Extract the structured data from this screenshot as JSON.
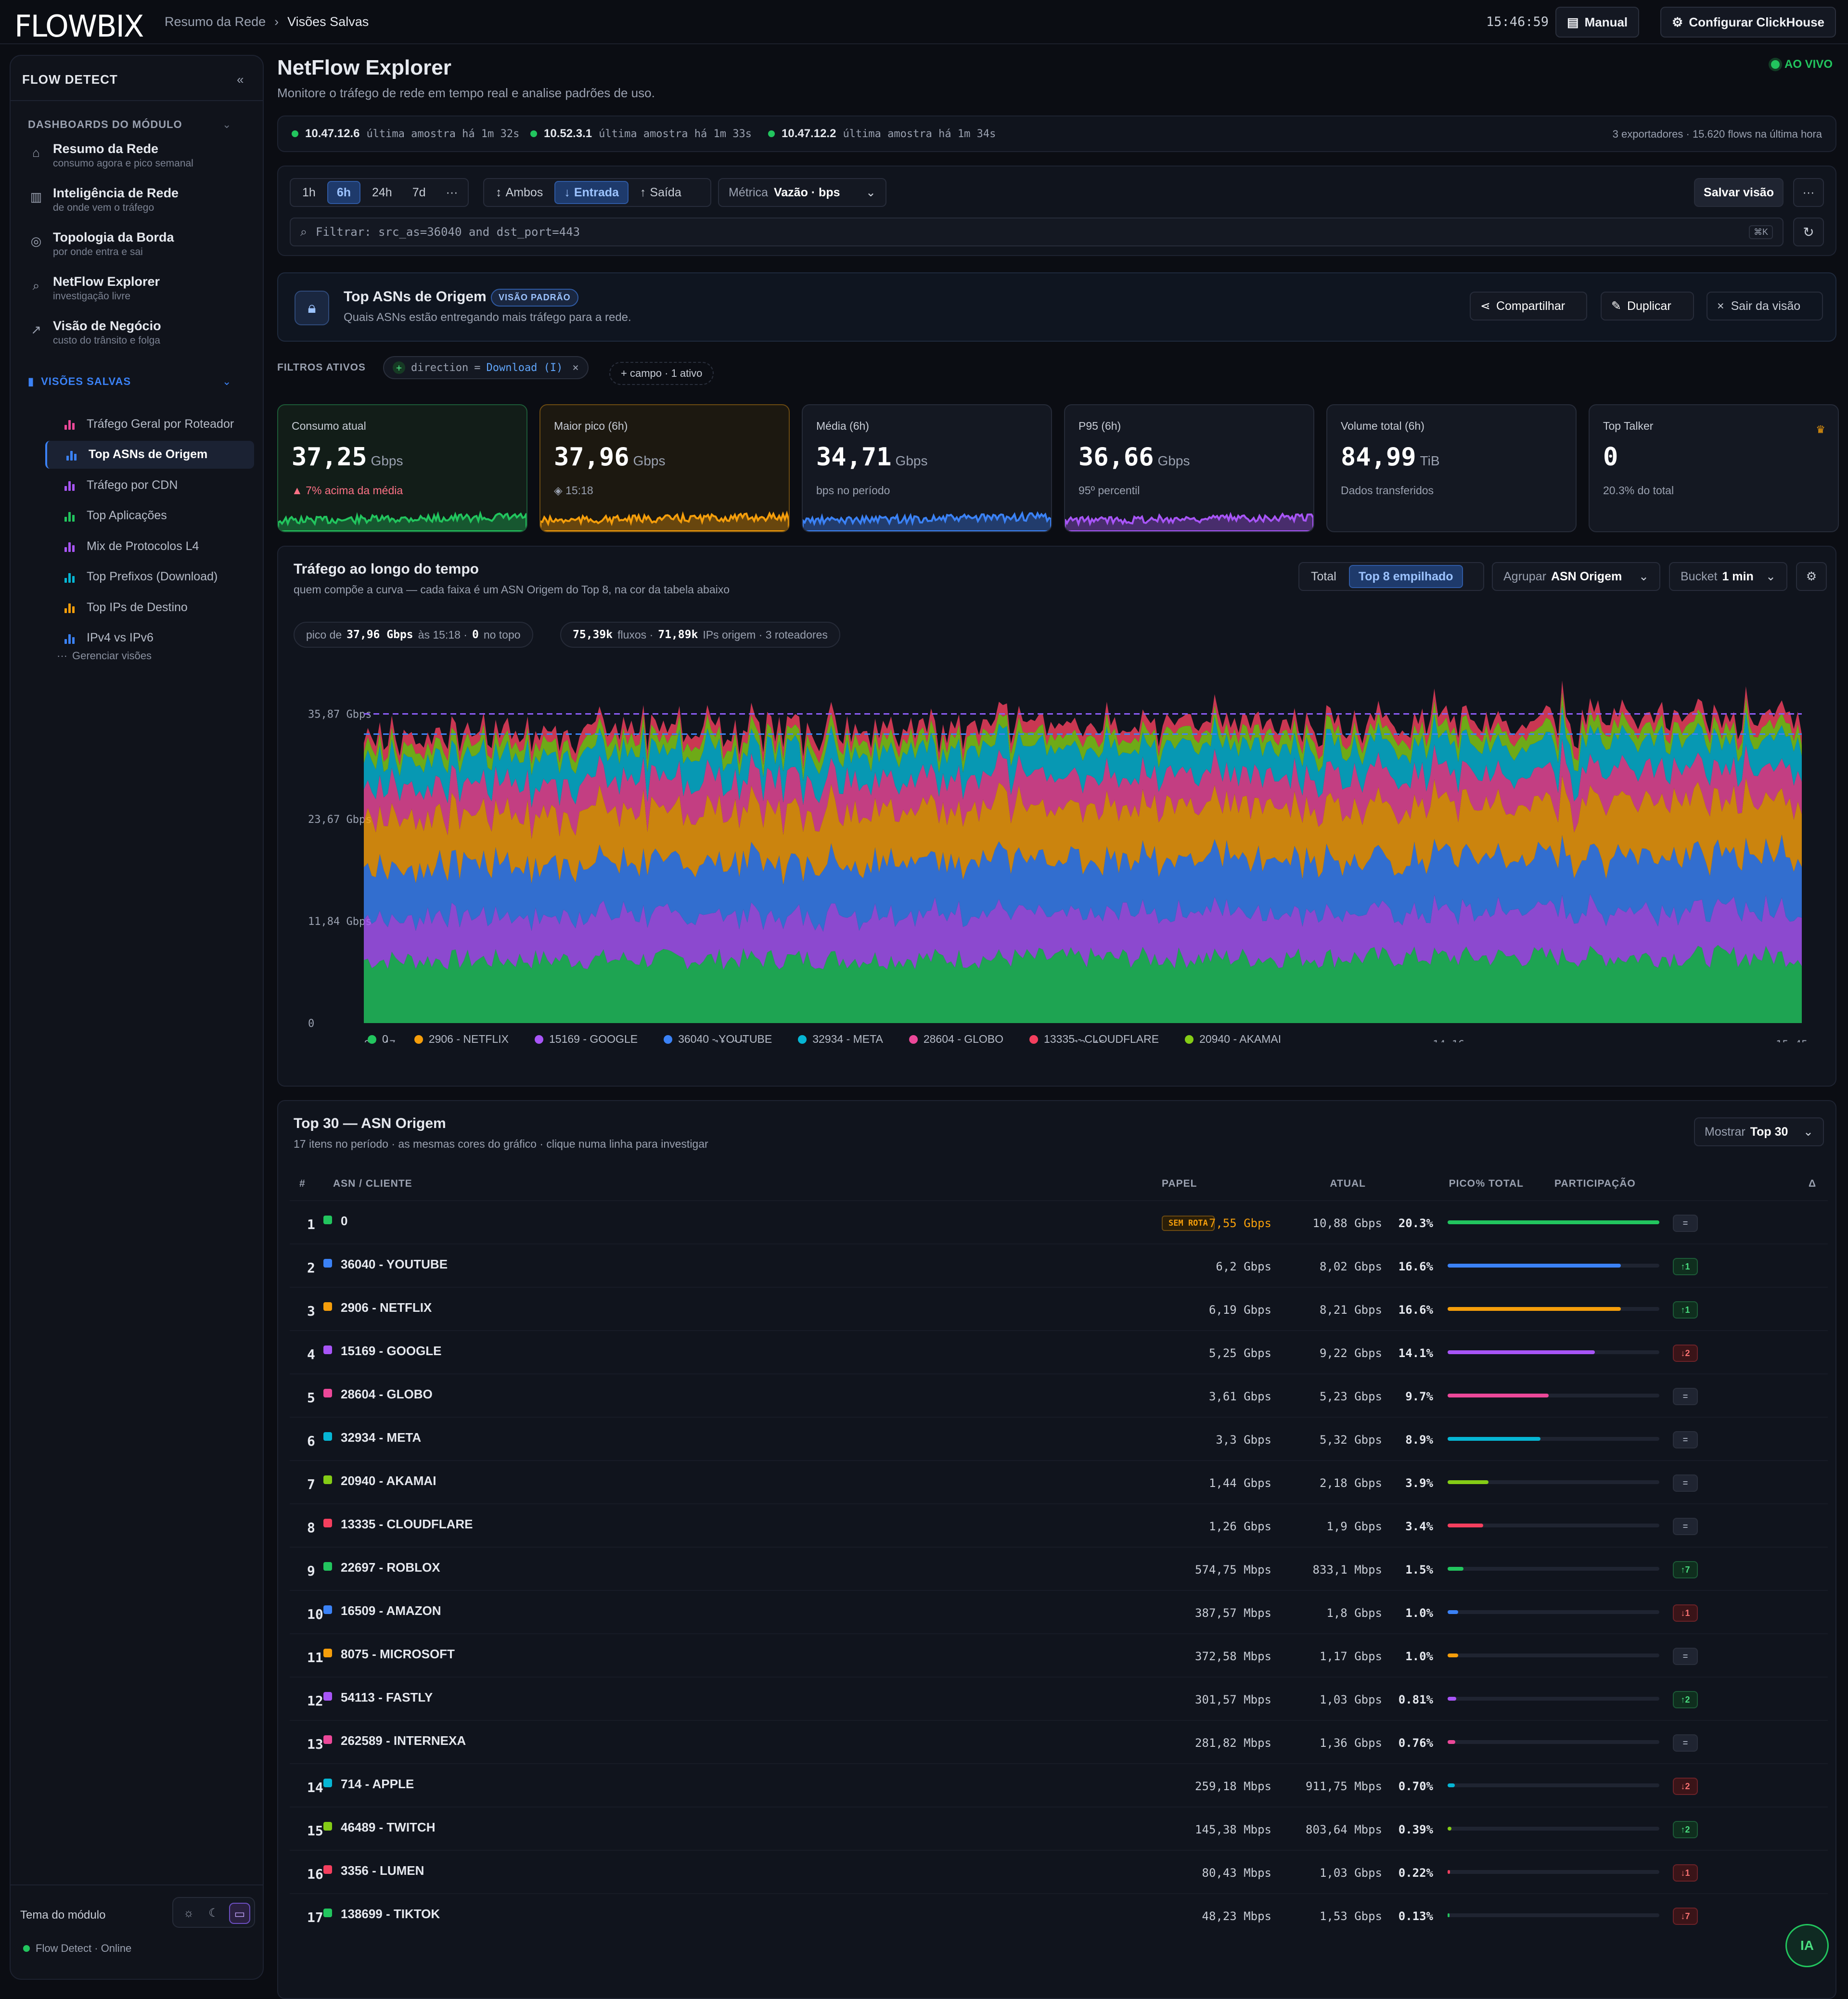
{
  "brand": "FLOWBIX",
  "breadcrumb": {
    "parent": "Resumo da Rede",
    "current": "Visões Salvas"
  },
  "clock": "15:46:59",
  "topbar": {
    "manual": "Manual",
    "config": "Configurar ClickHouse"
  },
  "sidebar": {
    "title": "FLOW DETECT",
    "section_dash": "DASHBOARDS DO MÓDULO",
    "nav": [
      {
        "title": "Resumo da Rede",
        "sub": "consumo agora e pico semanal",
        "icon": "home-icon"
      },
      {
        "title": "Inteligência de Rede",
        "sub": "de onde vem o tráfego",
        "icon": "bar-chart-icon"
      },
      {
        "title": "Topologia da Borda",
        "sub": "por onde entra e sai",
        "icon": "globe-icon"
      },
      {
        "title": "NetFlow Explorer",
        "sub": "investigação livre",
        "icon": "search-icon"
      },
      {
        "title": "Visão de Negócio",
        "sub": "custo do trânsito e folga",
        "icon": "trend-icon"
      }
    ],
    "section_saved": "VISÕES SALVAS",
    "saved": [
      {
        "label": "Tráfego Geral por Roteador",
        "color": "#ec4899"
      },
      {
        "label": "Top ASNs de Origem",
        "color": "#3b82f6",
        "active": true
      },
      {
        "label": "Tráfego por CDN",
        "color": "#a855f7"
      },
      {
        "label": "Top Aplicações",
        "color": "#22c55e"
      },
      {
        "label": "Mix de Protocolos L4",
        "color": "#a855f7"
      },
      {
        "label": "Top Prefixos (Download)",
        "color": "#06b6d4"
      },
      {
        "label": "Top IPs de Destino",
        "color": "#f59e0b"
      },
      {
        "label": "IPv4 vs IPv6",
        "color": "#3b82f6"
      }
    ],
    "manage": "Gerenciar visões",
    "theme_label": "Tema do módulo",
    "status": "Flow Detect · Online"
  },
  "page": {
    "title": "NetFlow Explorer",
    "subtitle": "Monitore o tráfego de rede em tempo real e analise padrões de uso.",
    "live": "AO VIVO"
  },
  "exporters": [
    {
      "ip": "10.47.12.6",
      "meta": "última amostra há 1m 32s"
    },
    {
      "ip": "10.52.3.1",
      "meta": "última amostra há 1m 33s"
    },
    {
      "ip": "10.47.12.2",
      "meta": "última amostra há 1m 34s"
    }
  ],
  "exporters_summary": "3 exportadores · 15.620 flows na última hora",
  "toolbar": {
    "ranges": [
      "1h",
      "6h",
      "24h",
      "7d",
      "···"
    ],
    "range_active": "6h",
    "dirs": [
      "Ambos",
      "Entrada",
      "Saída"
    ],
    "dir_active": "Entrada",
    "metric_label": "Métrica",
    "metric_value": "Vazão · bps",
    "save": "Salvar visão",
    "more": "···",
    "filter_value": "Filtrar: src_as=36040 and dst_port=443",
    "shortcut": "⌘K"
  },
  "view": {
    "title": "Top ASNs de Origem",
    "badge": "VISÃO PADRÃO",
    "desc": "Quais ASNs estão entregando mais tráfego para a rede.",
    "share": "Compartilhar",
    "duplicate": "Duplicar",
    "exit": "Sair da visão"
  },
  "filters": {
    "label": "FILTROS ATIVOS",
    "chip_key": "direction",
    "chip_op": "=",
    "chip_val": "Download (I)",
    "add": "+ campo · 1 ativo"
  },
  "kpis": [
    {
      "label": "Consumo atual",
      "value": "37,25",
      "unit": "Gbps",
      "foot": "▲ 7% acima da média",
      "color": "#22c55e",
      "border": "#1c5a37"
    },
    {
      "label": "Maior pico (6h)",
      "value": "37,96",
      "unit": "Gbps",
      "foot": "◈ 15:18",
      "color": "#f59e0b",
      "border": "#6b4a12"
    },
    {
      "label": "Média (6h)",
      "value": "34,71",
      "unit": "Gbps",
      "foot": "bps no período",
      "color": "#3b82f6",
      "border": "#262b38"
    },
    {
      "label": "P95 (6h)",
      "value": "36,66",
      "unit": "Gbps",
      "foot": "95º percentil",
      "color": "#a855f7",
      "border": "#262b38"
    },
    {
      "label": "Volume total (6h)",
      "value": "84,99",
      "unit": "TiB",
      "foot": "Dados transferidos",
      "color": "",
      "border": "#262b38"
    },
    {
      "label": "Top Talker",
      "value": "0",
      "unit": "",
      "foot": "20.3% do total",
      "color": "",
      "border": "#262b38"
    }
  ],
  "chart": {
    "title": "Tráfego ao longo do tempo",
    "subtitle": "quem compõe a curva — cada faixa é um ASN Origem do Top 8, na cor da tabela abaixo",
    "mode_total": "Total",
    "mode_stacked": "Top 8 empilhado",
    "group_label": "Agrupar",
    "group_value": "ASN Origem",
    "bucket_label": "Bucket",
    "bucket_value": "1 min",
    "pill1_pre": "pico de",
    "pill1_val": "37,96 Gbps",
    "pill1_mid": "às 15:18 ·",
    "pill1_top": "0",
    "pill1_post": "no topo",
    "pill2_flows": "75,39k",
    "pill2_flows_lbl": "fluxos ·",
    "pill2_ips": "71,89k",
    "pill2_ips_lbl": "IPs origem · 3 roteadores"
  },
  "chart_data": {
    "type": "area",
    "stacked": true,
    "y_ticks": [
      "0",
      "11,84 Gbps",
      "23,67 Gbps",
      "35,87 Gbps"
    ],
    "ylim": [
      0,
      37.96
    ],
    "x_ticks": [
      "09:47",
      "11:17",
      "12:46",
      "14:16",
      "15:45"
    ],
    "peak_line": 35.87,
    "series": [
      {
        "name": "0",
        "color": "#22c55e",
        "mean": 7.55
      },
      {
        "name": "2906 - NETFLIX",
        "color": "#f59e0b",
        "mean": 6.19
      },
      {
        "name": "15169 - GOOGLE",
        "color": "#a855f7",
        "mean": 5.25
      },
      {
        "name": "36040 - YOUTUBE",
        "color": "#3b82f6",
        "mean": 6.2
      },
      {
        "name": "32934 - META",
        "color": "#06b6d4",
        "mean": 3.3
      },
      {
        "name": "28604 - GLOBO",
        "color": "#ec4899",
        "mean": 3.61
      },
      {
        "name": "13335 - CLOUDFLARE",
        "color": "#f43f5e",
        "mean": 1.26
      },
      {
        "name": "20940 - AKAMAI",
        "color": "#84cc16",
        "mean": 1.44
      }
    ],
    "stack_order": [
      "0",
      "15169 - GOOGLE",
      "36040 - YOUTUBE",
      "2906 - NETFLIX",
      "28604 - GLOBO",
      "32934 - META",
      "20940 - AKAMAI",
      "13335 - CLOUDFLARE"
    ]
  },
  "table": {
    "title": "Top 30 — ASN Origem",
    "subtitle": "17 itens no período · as mesmas cores do gráfico · clique numa linha para investigar",
    "show_label": "Mostrar",
    "show_value": "Top 30",
    "headers": {
      "n": "#",
      "asn": "ASN / CLIENTE",
      "role": "PAPEL",
      "cur": "ATUAL",
      "peak": "PICO",
      "pct": "% TOTAL",
      "share": "PARTICIPAÇÃO",
      "delta": "Δ"
    },
    "rows": [
      {
        "n": "1",
        "name": "0",
        "color": "#22c55e",
        "role": "SEM ROTA",
        "cur": "7,55 Gbps",
        "peak": "10,88 Gbps",
        "pct": "20.3%",
        "share": 20.3,
        "delta": "=",
        "dtype": "eq",
        "hl": true
      },
      {
        "n": "2",
        "name": "36040 - YOUTUBE",
        "color": "#3b82f6",
        "role": "",
        "cur": "6,2 Gbps",
        "peak": "8,02 Gbps",
        "pct": "16.6%",
        "share": 16.6,
        "delta": "↑1",
        "dtype": "up"
      },
      {
        "n": "3",
        "name": "2906 - NETFLIX",
        "color": "#f59e0b",
        "role": "",
        "cur": "6,19 Gbps",
        "peak": "8,21 Gbps",
        "pct": "16.6%",
        "share": 16.6,
        "delta": "↑1",
        "dtype": "up"
      },
      {
        "n": "4",
        "name": "15169 - GOOGLE",
        "color": "#a855f7",
        "role": "",
        "cur": "5,25 Gbps",
        "peak": "9,22 Gbps",
        "pct": "14.1%",
        "share": 14.1,
        "delta": "↓2",
        "dtype": "down"
      },
      {
        "n": "5",
        "name": "28604 - GLOBO",
        "color": "#ec4899",
        "role": "",
        "cur": "3,61 Gbps",
        "peak": "5,23 Gbps",
        "pct": "9.7%",
        "share": 9.7,
        "delta": "=",
        "dtype": "eq"
      },
      {
        "n": "6",
        "name": "32934 - META",
        "color": "#06b6d4",
        "role": "",
        "cur": "3,3 Gbps",
        "peak": "5,32 Gbps",
        "pct": "8.9%",
        "share": 8.9,
        "delta": "=",
        "dtype": "eq"
      },
      {
        "n": "7",
        "name": "20940 - AKAMAI",
        "color": "#84cc16",
        "role": "",
        "cur": "1,44 Gbps",
        "peak": "2,18 Gbps",
        "pct": "3.9%",
        "share": 3.9,
        "delta": "=",
        "dtype": "eq"
      },
      {
        "n": "8",
        "name": "13335 - CLOUDFLARE",
        "color": "#f43f5e",
        "role": "",
        "cur": "1,26 Gbps",
        "peak": "1,9 Gbps",
        "pct": "3.4%",
        "share": 3.4,
        "delta": "=",
        "dtype": "eq"
      },
      {
        "n": "9",
        "name": "22697 - ROBLOX",
        "color": "#22c55e",
        "role": "",
        "cur": "574,75 Mbps",
        "peak": "833,1 Mbps",
        "pct": "1.5%",
        "share": 1.5,
        "delta": "↑7",
        "dtype": "up"
      },
      {
        "n": "10",
        "name": "16509 - AMAZON",
        "color": "#3b82f6",
        "role": "",
        "cur": "387,57 Mbps",
        "peak": "1,8 Gbps",
        "pct": "1.0%",
        "share": 1.0,
        "delta": "↓1",
        "dtype": "down"
      },
      {
        "n": "11",
        "name": "8075 - MICROSOFT",
        "color": "#f59e0b",
        "role": "",
        "cur": "372,58 Mbps",
        "peak": "1,17 Gbps",
        "pct": "1.0%",
        "share": 1.0,
        "delta": "=",
        "dtype": "eq"
      },
      {
        "n": "12",
        "name": "54113 - FASTLY",
        "color": "#a855f7",
        "role": "",
        "cur": "301,57 Mbps",
        "peak": "1,03 Gbps",
        "pct": "0.81%",
        "share": 0.81,
        "delta": "↑2",
        "dtype": "up"
      },
      {
        "n": "13",
        "name": "262589 - INTERNEXA",
        "color": "#ec4899",
        "role": "",
        "cur": "281,82 Mbps",
        "peak": "1,36 Gbps",
        "pct": "0.76%",
        "share": 0.76,
        "delta": "=",
        "dtype": "eq"
      },
      {
        "n": "14",
        "name": "714 - APPLE",
        "color": "#06b6d4",
        "role": "",
        "cur": "259,18 Mbps",
        "peak": "911,75 Mbps",
        "pct": "0.70%",
        "share": 0.7,
        "delta": "↓2",
        "dtype": "down"
      },
      {
        "n": "15",
        "name": "46489 - TWITCH",
        "color": "#84cc16",
        "role": "",
        "cur": "145,38 Mbps",
        "peak": "803,64 Mbps",
        "pct": "0.39%",
        "share": 0.39,
        "delta": "↑2",
        "dtype": "up"
      },
      {
        "n": "16",
        "name": "3356 - LUMEN",
        "color": "#f43f5e",
        "role": "",
        "cur": "80,43 Mbps",
        "peak": "1,03 Gbps",
        "pct": "0.22%",
        "share": 0.22,
        "delta": "↓1",
        "dtype": "down"
      },
      {
        "n": "17",
        "name": "138699 - TIKTOK",
        "color": "#22c55e",
        "role": "",
        "cur": "48,23 Mbps",
        "peak": "1,53 Gbps",
        "pct": "0.13%",
        "share": 0.13,
        "delta": "↓7",
        "dtype": "down"
      }
    ]
  },
  "assistant": "IA"
}
